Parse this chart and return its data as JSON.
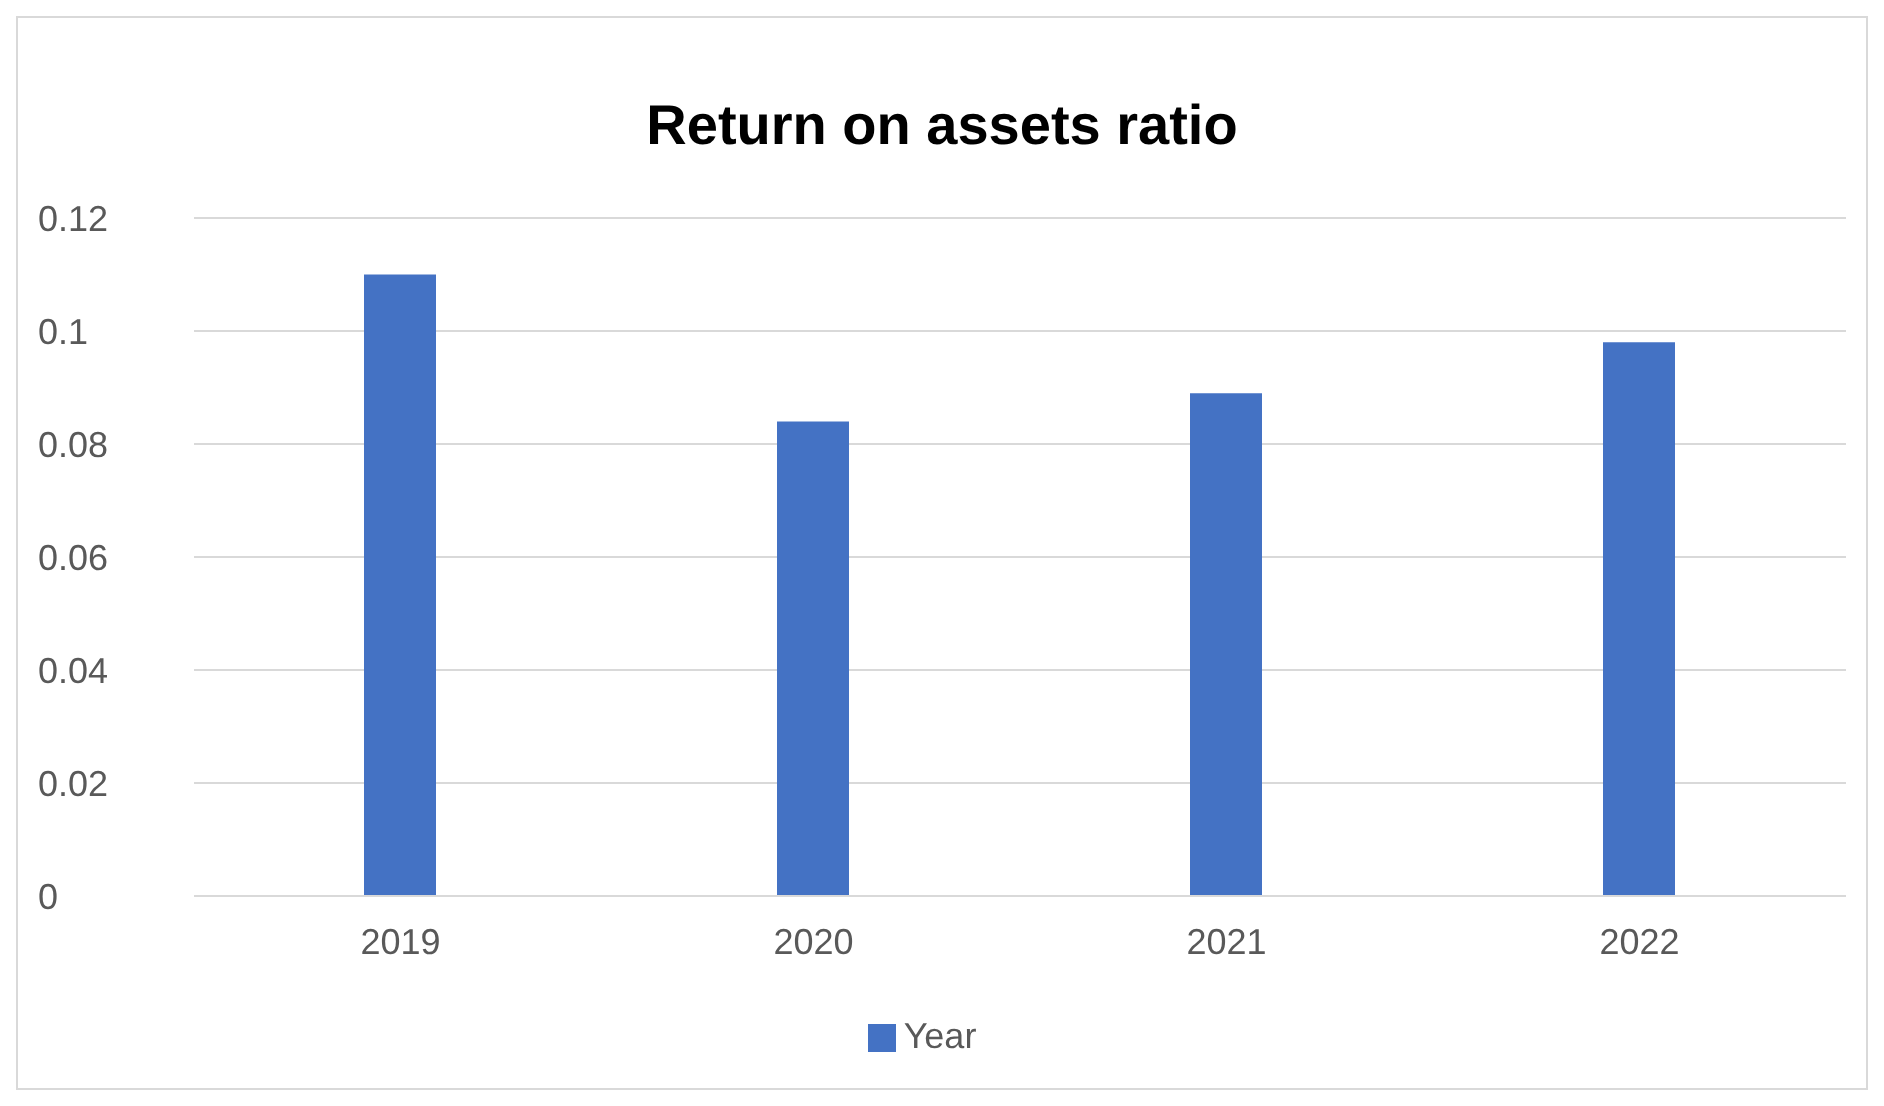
{
  "chart_data": {
    "type": "bar",
    "title": "Return on assets ratio",
    "categories": [
      "2019",
      "2020",
      "2021",
      "2022"
    ],
    "series": [
      {
        "name": "Year",
        "color": "#4472c4",
        "values": [
          0.11,
          0.084,
          0.089,
          0.098
        ]
      }
    ],
    "ylim": [
      0,
      0.12
    ],
    "yticks": [
      0,
      0.02,
      0.04,
      0.06,
      0.08,
      0.1,
      0.12
    ],
    "grid": "y",
    "legend": "bottom"
  }
}
